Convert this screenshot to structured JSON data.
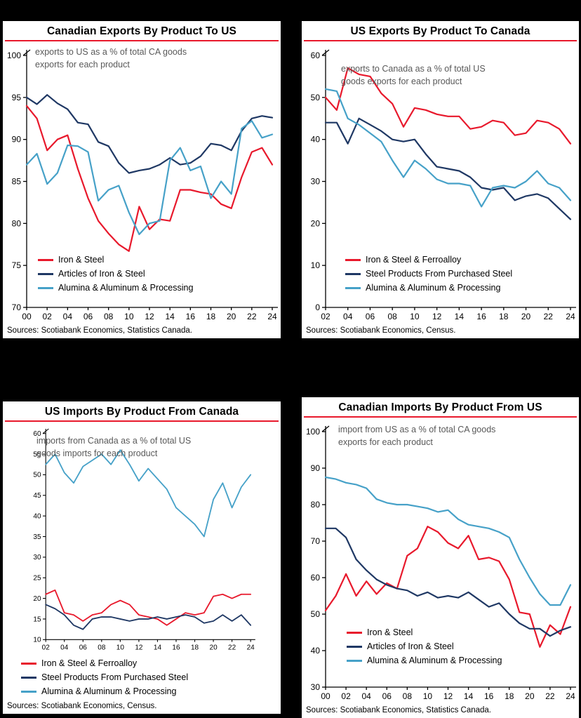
{
  "page": {
    "background": "#000000"
  },
  "colors": {
    "red": "#e8192c",
    "navy": "#1f3864",
    "light_blue": "#46a1c8",
    "title_rule": "#e8192c",
    "subtitle_gray": "#595959"
  },
  "charts": [
    {
      "title": "Canadian Exports By Product To US",
      "subtitle": "exports to US as a % of total CA goods\nexports  for each product",
      "sources": "Sources: Scotiabank Economics, Statistics Canada.",
      "chart_data": {
        "type": "line",
        "x": [
          2000,
          2001,
          2002,
          2003,
          2004,
          2005,
          2006,
          2007,
          2008,
          2009,
          2010,
          2011,
          2012,
          2013,
          2014,
          2015,
          2016,
          2017,
          2018,
          2019,
          2020,
          2021,
          2022,
          2023,
          2024
        ],
        "x_tick_labels": [
          "00",
          "02",
          "04",
          "06",
          "08",
          "10",
          "12",
          "14",
          "16",
          "18",
          "20",
          "22",
          "24"
        ],
        "ylim": [
          70,
          100
        ],
        "y_ticks": [
          70,
          75,
          80,
          85,
          90,
          95,
          100
        ],
        "grid": false,
        "legend_position": "inside",
        "series": [
          {
            "name": "Iron & Steel",
            "color": "#e8192c",
            "values": [
              94,
              92.5,
              88.7,
              90,
              90.5,
              86.5,
              83,
              80.3,
              78.8,
              77.5,
              76.7,
              82,
              79.3,
              80.5,
              80.3,
              84,
              84,
              83.7,
              83.5,
              82.3,
              81.8,
              85.5,
              88.5,
              89,
              87
            ]
          },
          {
            "name": "Articles of Iron & Steel",
            "color": "#1f3864",
            "values": [
              95,
              94.2,
              95.3,
              94.3,
              93.6,
              92,
              91.8,
              89.7,
              89.2,
              87.2,
              86,
              86.3,
              86.5,
              87,
              87.8,
              87,
              87.2,
              88,
              89.5,
              89.3,
              88.7,
              91,
              92.5,
              92.8,
              92.6
            ]
          },
          {
            "name": "Alumina & Aluminum  & Processing",
            "color": "#46a1c8",
            "values": [
              87,
              88.3,
              84.7,
              86,
              89.3,
              89.2,
              88.5,
              82.7,
              84,
              84.5,
              81.3,
              78.7,
              80,
              80.3,
              87.5,
              89,
              86.3,
              86.8,
              83,
              85,
              83.5,
              91.3,
              92.2,
              90.2,
              90.6
            ]
          }
        ]
      }
    },
    {
      "title": "US Exports By Product To Canada",
      "subtitle": "exports to Canada as a % of total US\ngoods exports  for each product",
      "sources": "Sources: Scotiabank Economics, Census.",
      "chart_data": {
        "type": "line",
        "x": [
          2002,
          2003,
          2004,
          2005,
          2006,
          2007,
          2008,
          2009,
          2010,
          2011,
          2012,
          2013,
          2014,
          2015,
          2016,
          2017,
          2018,
          2019,
          2020,
          2021,
          2022,
          2023,
          2024
        ],
        "x_tick_labels": [
          "02",
          "04",
          "06",
          "08",
          "10",
          "12",
          "14",
          "16",
          "18",
          "20",
          "22",
          "24"
        ],
        "ylim": [
          0,
          60
        ],
        "y_ticks": [
          0,
          10,
          20,
          30,
          40,
          50,
          60
        ],
        "grid": false,
        "legend_position": "inside",
        "series": [
          {
            "name": "Iron & Steel & Ferroalloy",
            "color": "#e8192c",
            "values": [
              50,
              47,
              57,
              55.5,
              55,
              51,
              48.5,
              43,
              47.5,
              47,
              46,
              45.5,
              45.5,
              42.5,
              43,
              44.5,
              44,
              41,
              41.5,
              44.5,
              44,
              42.5,
              39
            ]
          },
          {
            "name": "Steel Products From Purchased Steel",
            "color": "#1f3864",
            "values": [
              44,
              44,
              39,
              45,
              43.5,
              42,
              40,
              39.5,
              40,
              36.5,
              33.5,
              33,
              32.5,
              31,
              28.5,
              28,
              28.5,
              25.5,
              26.5,
              27,
              26,
              23.5,
              21
            ]
          },
          {
            "name": "Alumina & Aluminum  & Processing",
            "color": "#46a1c8",
            "values": [
              52,
              51.5,
              45,
              43.5,
              41.5,
              39.5,
              35,
              31,
              35,
              33,
              30.5,
              29.5,
              29.5,
              29,
              24,
              28.5,
              29,
              28.5,
              30,
              32.5,
              29.5,
              28.5,
              25.5
            ]
          }
        ]
      }
    },
    {
      "title": "US Imports By Product From Canada",
      "subtitle": "imports from Canada as a % of total US\ngoods imports for each product",
      "sources": "Sources: Scotiabank Economics, Census.",
      "chart_data": {
        "type": "line",
        "x": [
          2002,
          2003,
          2004,
          2005,
          2006,
          2007,
          2008,
          2009,
          2010,
          2011,
          2012,
          2013,
          2014,
          2015,
          2016,
          2017,
          2018,
          2019,
          2020,
          2021,
          2022,
          2023,
          2024
        ],
        "x_tick_labels": [
          "02",
          "04",
          "06",
          "08",
          "10",
          "12",
          "14",
          "16",
          "18",
          "20",
          "22",
          "24"
        ],
        "ylim": [
          10,
          60
        ],
        "y_ticks": [
          10,
          15,
          20,
          25,
          30,
          35,
          40,
          45,
          50,
          55,
          60
        ],
        "grid": false,
        "legend_position": "below",
        "series": [
          {
            "name": "Iron & Steel & Ferroalloy",
            "color": "#e8192c",
            "values": [
              21,
              22,
              16.5,
              16,
              14.5,
              16,
              16.5,
              18.5,
              19.5,
              18.5,
              16,
              15.5,
              15,
              13.5,
              15,
              16.5,
              16,
              16.5,
              20.5,
              21,
              20,
              21,
              21
            ]
          },
          {
            "name": "Steel Products From Purchased Steel",
            "color": "#1f3864",
            "values": [
              18.5,
              17.5,
              16,
              13.5,
              12.5,
              15,
              15.5,
              15.5,
              15,
              14.5,
              15,
              15,
              15.5,
              15,
              15.5,
              16,
              15.5,
              14,
              14.5,
              16,
              14.5,
              16,
              13.5
            ]
          },
          {
            "name": "Alumina & Aluminum  & Processing",
            "color": "#46a1c8",
            "values": [
              52.5,
              55,
              50.5,
              48,
              52,
              53.5,
              55,
              52.5,
              56,
              52.5,
              48.5,
              51.5,
              49,
              46.5,
              42,
              40,
              38,
              35,
              44,
              48,
              42,
              47,
              50
            ]
          }
        ]
      }
    },
    {
      "title": "Canadian Imports By Product From US",
      "subtitle": "import from US as a % of total CA goods\nexports  for each product",
      "sources": "Sources: Scotiabank Economics, Statistics Canada.",
      "chart_data": {
        "type": "line",
        "x": [
          2000,
          2001,
          2002,
          2003,
          2004,
          2005,
          2006,
          2007,
          2008,
          2009,
          2010,
          2011,
          2012,
          2013,
          2014,
          2015,
          2016,
          2017,
          2018,
          2019,
          2020,
          2021,
          2022,
          2023,
          2024
        ],
        "x_tick_labels": [
          "00",
          "02",
          "04",
          "06",
          "08",
          "10",
          "12",
          "14",
          "16",
          "18",
          "20",
          "22",
          "24"
        ],
        "ylim": [
          30,
          100
        ],
        "y_ticks": [
          30,
          40,
          50,
          60,
          70,
          80,
          90,
          100
        ],
        "grid": false,
        "legend_position": "inside",
        "series": [
          {
            "name": "Iron & Steel",
            "color": "#e8192c",
            "values": [
              51,
              55,
              61,
              55,
              59,
              55.5,
              58.5,
              57,
              66,
              68,
              74,
              72.5,
              69.5,
              68,
              71.5,
              65,
              65.5,
              64.5,
              59.5,
              50.5,
              50,
              41,
              47,
              44.5,
              52
            ]
          },
          {
            "name": "Articles of Iron & Steel",
            "color": "#1f3864",
            "values": [
              73.5,
              73.5,
              71,
              65,
              62,
              59.5,
              58,
              57,
              56.5,
              55,
              56,
              54.5,
              55,
              54.5,
              56,
              54,
              52,
              53,
              50,
              47.5,
              46,
              46,
              44,
              45.5,
              46.5
            ]
          },
          {
            "name": "Alumina & Aluminum  & Processing",
            "color": "#46a1c8",
            "values": [
              87.5,
              87,
              86,
              85.5,
              84.5,
              81.5,
              80.5,
              80,
              80,
              79.5,
              79,
              78,
              78.5,
              76,
              74.5,
              74,
              73.5,
              72.5,
              71,
              65,
              60,
              55.5,
              52.5,
              52.5,
              58
            ]
          }
        ]
      }
    }
  ]
}
